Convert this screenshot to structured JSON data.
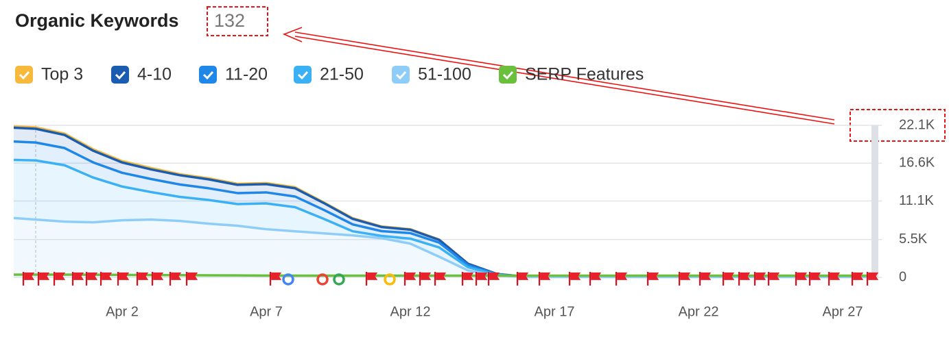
{
  "chart_data": {
    "type": "area",
    "title": "Organic Keywords",
    "title_value": 132,
    "categories": [
      null,
      null,
      null,
      null,
      "Apr 2",
      null,
      null,
      null,
      null,
      "Apr 7",
      null,
      null,
      null,
      null,
      "Apr 12",
      null,
      null,
      null,
      null,
      "Apr 17",
      null,
      null,
      null,
      null,
      "Apr 22",
      null,
      null,
      null,
      null,
      "Apr 27",
      null
    ],
    "series": [
      {
        "name": "Top 3",
        "color": "#f6b93b",
        "values": [
          200,
          200,
          200,
          200,
          200,
          200,
          150,
          150,
          150,
          150,
          150,
          100,
          100,
          80,
          70,
          50,
          20,
          10,
          0,
          0,
          0,
          0,
          0,
          0,
          0,
          0,
          0,
          0,
          0,
          0,
          0
        ]
      },
      {
        "name": "4-10",
        "color": "#1a5cb0",
        "values": [
          2000,
          2000,
          1900,
          1700,
          1500,
          1400,
          1350,
          1300,
          1200,
          1200,
          1200,
          1000,
          800,
          600,
          500,
          400,
          200,
          50,
          10,
          10,
          10,
          10,
          10,
          10,
          10,
          10,
          10,
          10,
          10,
          10,
          10
        ]
      },
      {
        "name": "11-20",
        "color": "#1f87e8",
        "values": [
          2700,
          2600,
          2500,
          2200,
          2000,
          1900,
          1800,
          1700,
          1600,
          1600,
          1550,
          1300,
          1000,
          700,
          800,
          700,
          300,
          60,
          10,
          10,
          10,
          10,
          10,
          10,
          10,
          10,
          10,
          10,
          10,
          10,
          10
        ]
      },
      {
        "name": "21-50",
        "color": "#3ab0f5",
        "values": [
          8400,
          8600,
          8200,
          6500,
          4900,
          4000,
          3500,
          3450,
          3150,
          3750,
          3500,
          2100,
          600,
          320,
          730,
          1350,
          480,
          80,
          30,
          30,
          30,
          30,
          30,
          30,
          30,
          30,
          30,
          30,
          30,
          30,
          30
        ]
      },
      {
        "name": "51-100",
        "color": "#8fcdf9",
        "values": [
          8700,
          8400,
          8100,
          8000,
          8300,
          8400,
          8200,
          7800,
          7500,
          7000,
          6700,
          6400,
          6100,
          5700,
          4900,
          3000,
          1000,
          300,
          50,
          50,
          50,
          50,
          50,
          50,
          50,
          50,
          50,
          50,
          50,
          50,
          50
        ]
      },
      {
        "name": "SERP Features",
        "color": "#6abf3c",
        "line": true,
        "values": [
          400,
          400,
          400,
          380,
          360,
          340,
          320,
          300,
          280,
          260,
          250,
          250,
          250,
          250,
          250,
          250,
          250,
          250,
          250,
          250,
          250,
          250,
          250,
          250,
          250,
          250,
          250,
          250,
          250,
          250,
          250
        ]
      }
    ],
    "ylim": [
      0,
      22100
    ],
    "yticks": [
      0,
      {
        "value": 5500,
        "label": "5.5K"
      },
      {
        "value": 11100,
        "label": "11.1K"
      },
      {
        "value": 16600,
        "label": "16.6K"
      },
      {
        "value": 22100,
        "label": "22.1K"
      }
    ],
    "grid": true
  }
}
